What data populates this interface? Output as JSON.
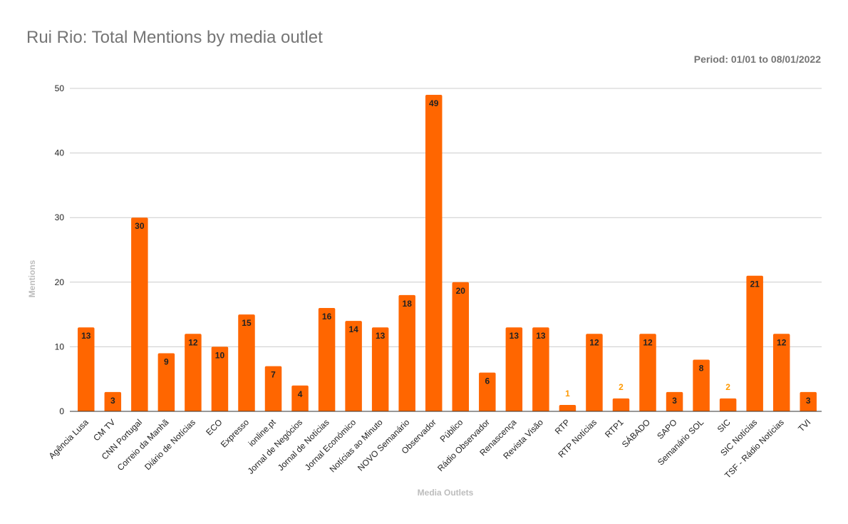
{
  "chart_data": {
    "type": "bar",
    "title": "Rui Rio: Total Mentions by media outlet",
    "subtitle": "Period: 01/01 to 08/01/2022",
    "xlabel": "Media Outlets",
    "ylabel": "Mentions",
    "ylim": [
      0,
      50
    ],
    "yticks": [
      0,
      10,
      20,
      30,
      40,
      50
    ],
    "grid": true,
    "legend": "none",
    "bar_color": "#ff6600",
    "categories": [
      "Agência Lusa",
      "CM TV",
      "CNN Portugal",
      "Correio da Manhã",
      "Diário de Notícias",
      "ECO",
      "Expresso",
      "ionline.pt",
      "Jornal de Negócios",
      "Jornal de Notícias",
      "Jornal Económico",
      "Notícias ao Minuto",
      "NOVO Semanário",
      "Observador",
      "Público",
      "Rádio Observador",
      "Renascença",
      "Revista Visão",
      "RTP",
      "RTP Notícias",
      "RTP1",
      "SÁBADO",
      "SAPO",
      "Semanário SOL",
      "SIC",
      "SIC Notícias",
      "TSF - Rádio Notícias",
      "TVI"
    ],
    "values": [
      13,
      3,
      30,
      9,
      12,
      10,
      15,
      7,
      4,
      16,
      14,
      13,
      18,
      49,
      20,
      6,
      13,
      13,
      1,
      12,
      2,
      12,
      3,
      8,
      2,
      21,
      12,
      3
    ]
  }
}
